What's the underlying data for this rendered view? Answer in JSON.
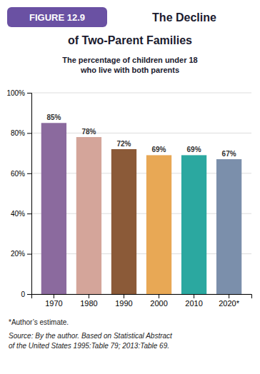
{
  "chart_data": {
    "type": "bar",
    "title": "The Decline\nof Two-Parent Families",
    "subtitle": "The percentage of children under 18\nwho live with both parents",
    "annotations": [
      "FIGURE 12.9",
      "*Author’s estimate.",
      "Source: By the author. Based on Statistical Abstract\nof the United States 1995:Table 79; 2013:Table 69."
    ],
    "categories": [
      "1970",
      "1980",
      "1990",
      "2000",
      "2010",
      "2020*"
    ],
    "values": [
      85,
      78,
      72,
      69,
      69,
      67
    ],
    "value_labels": [
      "85%",
      "78%",
      "72%",
      "69%",
      "69%",
      "67%"
    ],
    "colors": [
      "#8B6A9E",
      "#D4A59A",
      "#8B5A38",
      "#E8A855",
      "#2BA8A0",
      "#7B8FAB"
    ],
    "ylim": [
      0,
      100
    ],
    "yticks": [
      0,
      {
        "value": 20,
        "label": "20%"
      },
      {
        "value": 40,
        "label": "40%"
      },
      {
        "value": 60,
        "label": "60%"
      },
      {
        "value": 80,
        "label": "80%"
      },
      {
        "value": 100,
        "label": "100%"
      }
    ],
    "grid": true,
    "data_labels": true
  }
}
